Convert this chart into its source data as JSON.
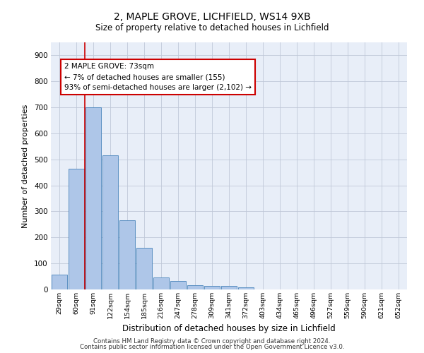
{
  "title1": "2, MAPLE GROVE, LICHFIELD, WS14 9XB",
  "title2": "Size of property relative to detached houses in Lichfield",
  "xlabel": "Distribution of detached houses by size in Lichfield",
  "ylabel": "Number of detached properties",
  "categories": [
    "29sqm",
    "60sqm",
    "91sqm",
    "122sqm",
    "154sqm",
    "185sqm",
    "216sqm",
    "247sqm",
    "278sqm",
    "309sqm",
    "341sqm",
    "372sqm",
    "403sqm",
    "434sqm",
    "465sqm",
    "496sqm",
    "527sqm",
    "559sqm",
    "590sqm",
    "621sqm",
    "652sqm"
  ],
  "values": [
    58,
    465,
    700,
    515,
    265,
    160,
    45,
    32,
    17,
    14,
    14,
    7,
    0,
    0,
    0,
    0,
    0,
    0,
    0,
    0,
    0
  ],
  "bar_color": "#aec6e8",
  "bar_edge_color": "#5a8fc2",
  "vline_x": 1.5,
  "vline_color": "#cc0000",
  "annotation_text": "2 MAPLE GROVE: 73sqm\n← 7% of detached houses are smaller (155)\n93% of semi-detached houses are larger (2,102) →",
  "annotation_box_color": "#ffffff",
  "annotation_box_edge": "#cc0000",
  "ylim": [
    0,
    950
  ],
  "yticks": [
    0,
    100,
    200,
    300,
    400,
    500,
    600,
    700,
    800,
    900
  ],
  "footer1": "Contains HM Land Registry data © Crown copyright and database right 2024.",
  "footer2": "Contains public sector information licensed under the Open Government Licence v3.0.",
  "background_color": "#e8eef8",
  "plot_background": "#ffffff",
  "grid_color": "#c0c8d8"
}
